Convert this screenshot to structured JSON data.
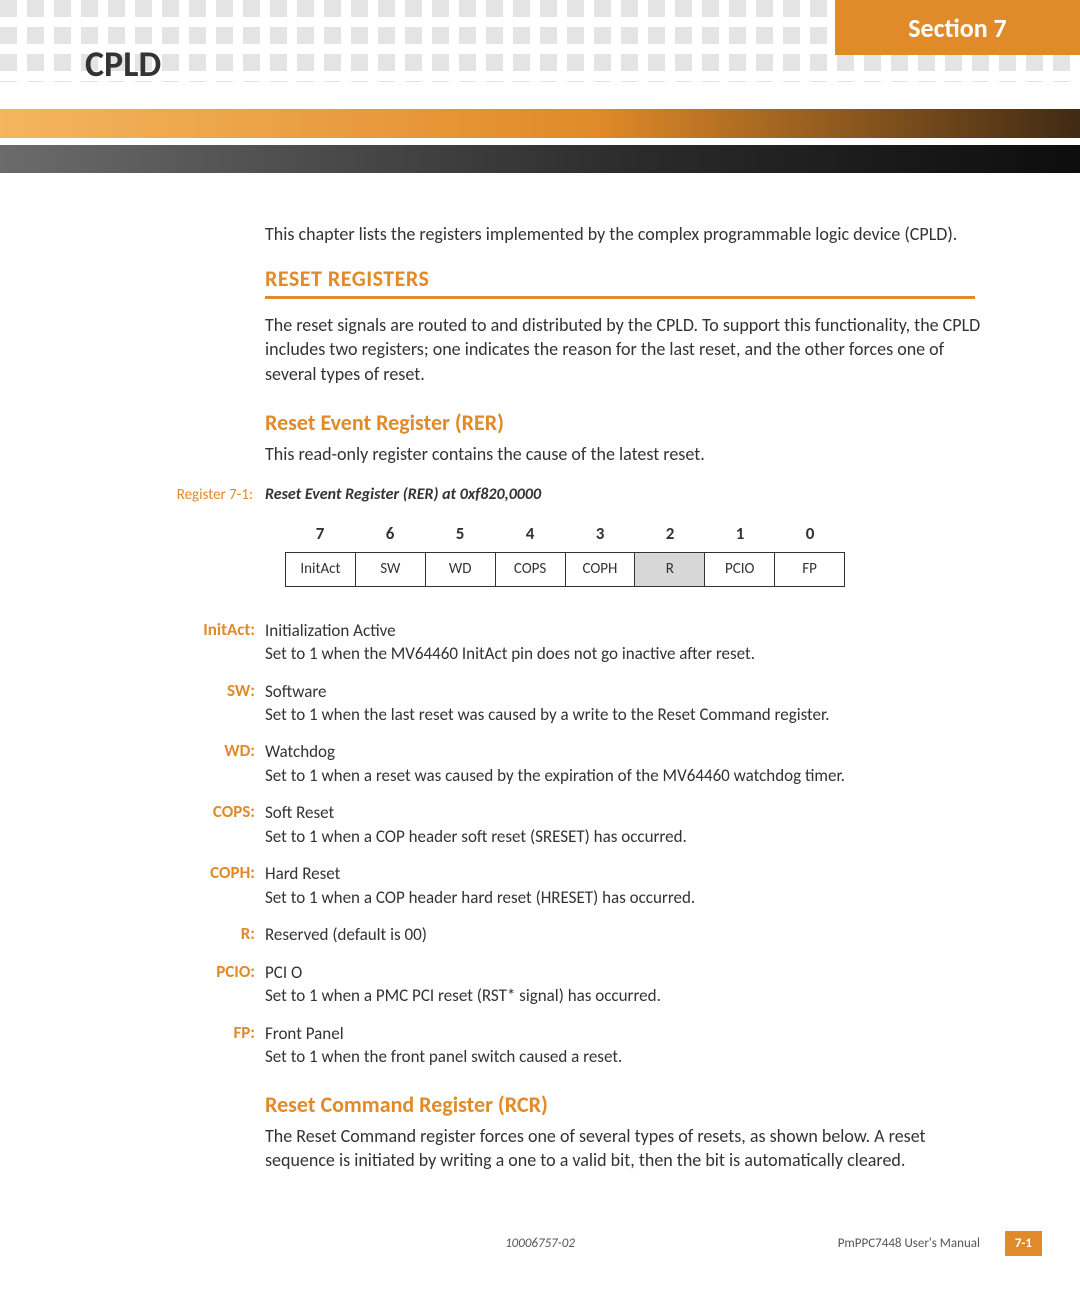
{
  "section_label": "Section 7",
  "page_title": "CPLD",
  "intro": "This chapter lists the registers implemented by the complex programmable logic device (CPLD).",
  "h1": "RESET REGISTERS",
  "h1_body": "The reset signals are routed to and distributed by the CPLD. To support this functionality, the CPLD includes two registers; one indicates the reason for the last reset, and the other forces one of several types of reset.",
  "h2a": "Reset Event Register (RER)",
  "h2a_body": "This read-only register contains the cause of the latest reset.",
  "caption_label": "Register 7-1:",
  "caption_text": "Reset Event Register (RER) at 0xf820,0000",
  "bit_table": {
    "numbers": [
      "7",
      "6",
      "5",
      "4",
      "3",
      "2",
      "1",
      "0"
    ],
    "cells": [
      "InitAct",
      "SW",
      "WD",
      "COPS",
      "COPH",
      "R",
      "PCIO",
      "FP"
    ],
    "shaded_index": 5
  },
  "defs": [
    {
      "term": "InitAct:",
      "body": "Initialization Active\nSet to 1 when the MV64460 InitAct pin does not go inactive after reset."
    },
    {
      "term": "SW:",
      "body": "Software\nSet to 1 when the last reset was caused by a write to the Reset Command register."
    },
    {
      "term": "WD:",
      "body": "Watchdog\nSet to 1 when a reset was caused by the expiration of the MV64460 watchdog timer."
    },
    {
      "term": "COPS:",
      "body": "Soft Reset\nSet to 1 when a COP header soft reset (SRESET) has occurred."
    },
    {
      "term": "COPH:",
      "body": "Hard Reset\nSet to 1 when a COP header hard reset (HRESET) has occurred."
    },
    {
      "term": "R:",
      "body": "Reserved (default is 00)"
    },
    {
      "term": "PCIO:",
      "body": "PCI O\nSet to 1 when a PMC PCI reset (RST* signal) has occurred."
    },
    {
      "term": "FP:",
      "body": "Front Panel\nSet to 1 when the front panel switch caused a reset."
    }
  ],
  "h2b": "Reset Command Register (RCR)",
  "h2b_body": "The Reset Command register forces one of several types of resets, as shown below. A reset sequence is initiated by writing a one to a valid bit, then the bit is automatically cleared.",
  "footer": {
    "docnum": "10006757-02",
    "manual": "PmPPC7448 User's Manual",
    "pagenum": "7-1"
  },
  "colors": {
    "accent": "#e18a29",
    "text": "#333333",
    "shaded_cell": "#d7d7d7"
  }
}
